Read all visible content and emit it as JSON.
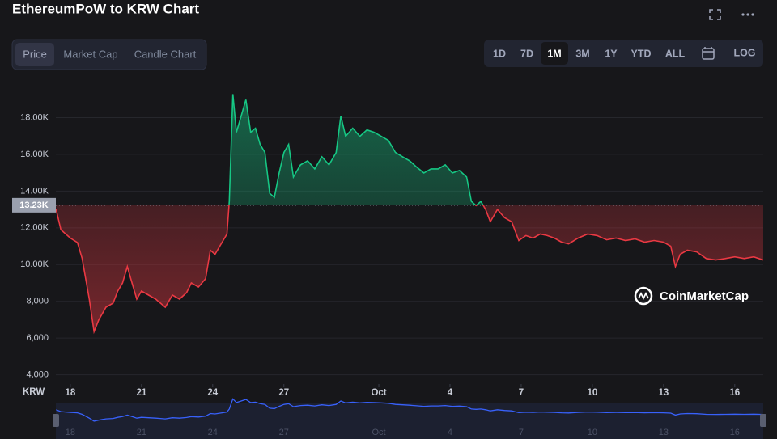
{
  "chart_data": {
    "type": "line",
    "title": "EthereumPoW to KRW Chart",
    "tabs": [
      "Price",
      "Market Cap",
      "Candle Chart"
    ],
    "active_tab": 0,
    "ranges": [
      "1D",
      "7D",
      "1M",
      "3M",
      "1Y",
      "YTD",
      "ALL"
    ],
    "active_range": 2,
    "log_button": "LOG",
    "watermark": "CoinMarketCap",
    "currency_label": "KRW",
    "up_color": "#16c784",
    "down_color": "#ea3943",
    "navigator_color": "#3861fb",
    "grid": true,
    "reference": {
      "value": 13230,
      "label": "13.23K"
    },
    "x": [
      17.4,
      17.6,
      18.0,
      18.3,
      18.5,
      18.8,
      19.0,
      19.2,
      19.5,
      19.8,
      20.0,
      20.2,
      20.4,
      20.6,
      20.8,
      21.0,
      21.3,
      21.6,
      21.8,
      22.0,
      22.3,
      22.6,
      22.9,
      23.1,
      23.4,
      23.7,
      23.9,
      24.1,
      24.4,
      24.6,
      24.7,
      24.85,
      25.0,
      25.2,
      25.4,
      25.6,
      25.8,
      26.0,
      26.2,
      26.4,
      26.6,
      26.8,
      27.0,
      27.2,
      27.4,
      27.7,
      28.0,
      28.3,
      28.6,
      28.9,
      29.2,
      29.4,
      29.6,
      29.9,
      30.2,
      30.5,
      30.8,
      31.1,
      31.4,
      31.7,
      32.0,
      32.3,
      32.6,
      32.9,
      33.2,
      33.5,
      33.8,
      34.1,
      34.4,
      34.7,
      34.9,
      35.1,
      35.3,
      35.5,
      35.7,
      36.0,
      36.3,
      36.6,
      36.9,
      37.2,
      37.5,
      37.8,
      38.1,
      38.4,
      38.7,
      39.0,
      39.4,
      39.8,
      40.2,
      40.6,
      41.0,
      41.4,
      41.8,
      42.2,
      42.6,
      43.0,
      43.3,
      43.5,
      43.7,
      44.0,
      44.4,
      44.8,
      45.2,
      45.6,
      46.0,
      46.4,
      46.8,
      47.2
    ],
    "values": [
      13000,
      11900,
      11440,
      11200,
      10330,
      8120,
      6350,
      7000,
      7680,
      7900,
      8560,
      9000,
      9890,
      9000,
      8120,
      8560,
      8340,
      8120,
      7900,
      7680,
      8340,
      8120,
      8470,
      9000,
      8780,
      9230,
      10780,
      10560,
      11220,
      11660,
      13440,
      19280,
      17200,
      18090,
      18970,
      17200,
      17420,
      16540,
      16100,
      13880,
      13660,
      14990,
      16100,
      16540,
      14770,
      15430,
      15650,
      15210,
      15870,
      15430,
      16100,
      18090,
      16980,
      17420,
      16980,
      17330,
      17200,
      16980,
      16760,
      16100,
      15870,
      15650,
      15300,
      14990,
      15210,
      15210,
      15430,
      14990,
      15120,
      14770,
      13440,
      13210,
      13440,
      13000,
      12330,
      13000,
      12550,
      12330,
      11310,
      11580,
      11440,
      11660,
      11580,
      11440,
      11220,
      11130,
      11440,
      11660,
      11580,
      11350,
      11440,
      11310,
      11400,
      11220,
      11310,
      11220,
      11000,
      9890,
      10560,
      10780,
      10690,
      10330,
      10250,
      10330,
      10420,
      10330,
      10420,
      10250
    ],
    "xlim": [
      17.39,
      47.2
    ],
    "xticks": [
      18,
      21,
      24,
      27,
      {
        "value": 31,
        "label": "Oct"
      },
      {
        "value": 34,
        "label": "4"
      },
      {
        "value": 37,
        "label": "7"
      },
      {
        "value": 40,
        "label": "10"
      },
      {
        "value": 43,
        "label": "13"
      },
      {
        "value": 46,
        "label": "16"
      }
    ],
    "ylim": [
      3500,
      20000
    ],
    "yticks": [
      {
        "value": 4000,
        "label": "4,000"
      },
      {
        "value": 6000,
        "label": "6,000"
      },
      {
        "value": 8000,
        "label": "8,000"
      },
      {
        "value": 10000,
        "label": "10.00K"
      },
      {
        "value": 12000,
        "label": "12.00K"
      },
      {
        "value": 14000,
        "label": "14.00K"
      },
      {
        "value": 16000,
        "label": "16.00K"
      },
      {
        "value": 18000,
        "label": "18.00K"
      }
    ]
  }
}
